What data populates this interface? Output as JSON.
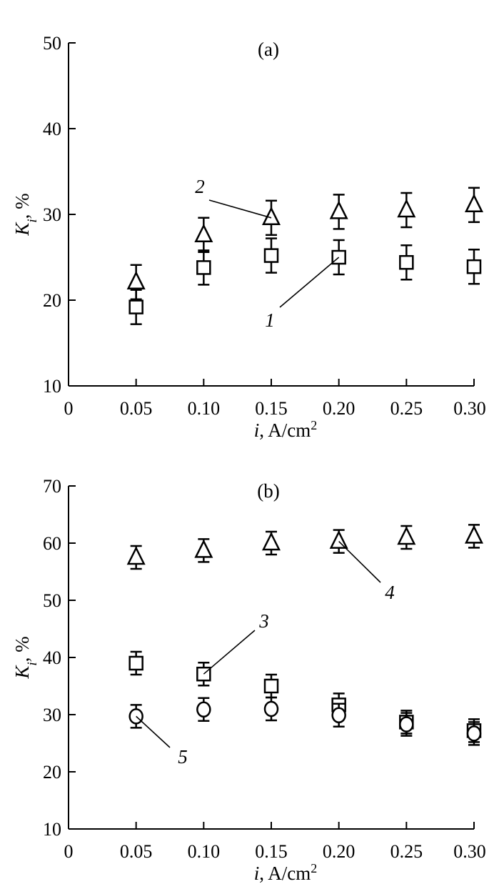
{
  "chart_data": [
    {
      "type": "scatter",
      "panel_label": "(a)",
      "xlabel_var": "i",
      "xlabel_unit": ", A/cm",
      "xlabel_sup": "2",
      "ylabel_var": "K",
      "ylabel_sub": "i",
      "ylabel_unit": ", %",
      "xlim": [
        0,
        0.3
      ],
      "ylim": [
        10,
        50
      ],
      "x_ticks": [
        0,
        0.05,
        0.1,
        0.15,
        0.2,
        0.25,
        0.3
      ],
      "x_tick_labels": [
        "0",
        "0.05",
        "0.10",
        "0.15",
        "0.20",
        "0.25",
        "0.30"
      ],
      "y_ticks": [
        10,
        20,
        30,
        40,
        50
      ],
      "y_tick_labels": [
        "10",
        "20",
        "30",
        "40",
        "50"
      ],
      "series": [
        {
          "label": "1",
          "marker": "square",
          "x": [
            0.05,
            0.1,
            0.15,
            0.2,
            0.25,
            0.3
          ],
          "y": [
            19.2,
            23.8,
            25.2,
            25.0,
            24.4,
            23.9
          ],
          "err": [
            2.0,
            2.0,
            2.0,
            2.0,
            2.0,
            2.0
          ]
        },
        {
          "label": "2",
          "marker": "triangle",
          "x": [
            0.05,
            0.1,
            0.15,
            0.2,
            0.25,
            0.3
          ],
          "y": [
            22.1,
            27.6,
            29.6,
            30.3,
            30.5,
            31.1
          ],
          "err": [
            2.0,
            2.0,
            2.0,
            2.0,
            2.0,
            2.0
          ]
        }
      ],
      "annotations": [
        {
          "text": "2",
          "series": 1,
          "point": 2
        },
        {
          "text": "1",
          "series": 0,
          "point": 3
        }
      ]
    },
    {
      "type": "scatter",
      "panel_label": "(b)",
      "xlabel_var": "i",
      "xlabel_unit": ", A/cm",
      "xlabel_sup": "2",
      "ylabel_var": "K",
      "ylabel_sub": "i",
      "ylabel_unit": ", %",
      "xlim": [
        0,
        0.3
      ],
      "ylim": [
        10,
        70
      ],
      "x_ticks": [
        0,
        0.05,
        0.1,
        0.15,
        0.2,
        0.25,
        0.3
      ],
      "x_tick_labels": [
        "0",
        "0.05",
        "0.10",
        "0.15",
        "0.20",
        "0.25",
        "0.30"
      ],
      "y_ticks": [
        10,
        20,
        30,
        40,
        50,
        60,
        70
      ],
      "y_tick_labels": [
        "10",
        "20",
        "30",
        "40",
        "50",
        "60",
        "70"
      ],
      "series": [
        {
          "label": "3",
          "marker": "square",
          "x": [
            0.05,
            0.1,
            0.15,
            0.2,
            0.25,
            0.3
          ],
          "y": [
            39.0,
            37.1,
            35.0,
            31.7,
            28.7,
            27.2
          ],
          "err": [
            2.0,
            2.0,
            2.0,
            2.0,
            2.0,
            2.0
          ]
        },
        {
          "label": "4",
          "marker": "triangle",
          "x": [
            0.05,
            0.1,
            0.15,
            0.2,
            0.25,
            0.3
          ],
          "y": [
            57.5,
            58.7,
            60.0,
            60.3,
            61.0,
            61.2
          ],
          "err": [
            2.0,
            2.0,
            2.0,
            2.0,
            2.0,
            2.0
          ]
        },
        {
          "label": "5",
          "marker": "circle",
          "x": [
            0.05,
            0.1,
            0.15,
            0.2,
            0.25,
            0.3
          ],
          "y": [
            29.7,
            30.9,
            31.0,
            29.9,
            28.3,
            26.7
          ],
          "err": [
            2.0,
            2.0,
            2.0,
            2.0,
            2.0,
            2.0
          ]
        }
      ],
      "annotations": [
        {
          "text": "3",
          "series": 0,
          "point": 1
        },
        {
          "text": "4",
          "series": 1,
          "point": 3
        },
        {
          "text": "5",
          "series": 2,
          "point": 0
        }
      ]
    }
  ]
}
